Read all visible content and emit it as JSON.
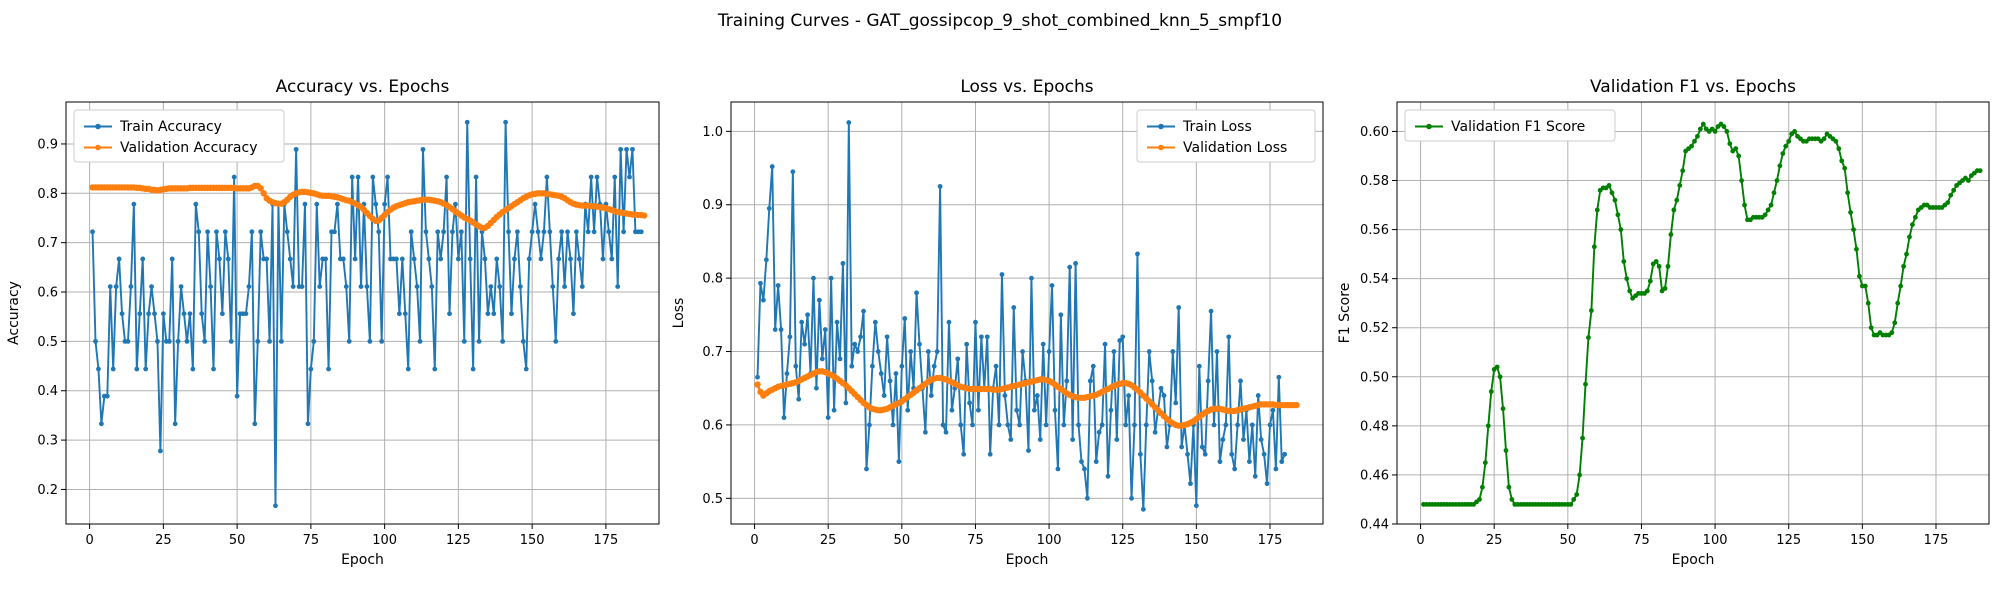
{
  "suptitle": "Training Curves - GAT_gossipcop_9_shot_combined_knn_5_smpf10",
  "colors": {
    "blue": "#1f77b4",
    "orange": "#ff7f0e",
    "green": "#008000"
  },
  "chart_data": [
    {
      "type": "line",
      "title": "Accuracy vs. Epochs",
      "xlabel": "Epoch",
      "ylabel": "Accuracy",
      "xlim": [
        -8,
        193
      ],
      "ylim": [
        0.13,
        0.985
      ],
      "xticks": [
        0,
        25,
        50,
        75,
        100,
        125,
        150,
        175
      ],
      "yticks": [
        0.2,
        0.3,
        0.4,
        0.5,
        0.6,
        0.7,
        0.8,
        0.9
      ],
      "grid": true,
      "legend": "upper-left",
      "series": [
        {
          "name": "Train Accuracy",
          "color": "#1f77b4",
          "x_start": 1,
          "values": [
            0.722,
            0.5,
            0.444,
            0.333,
            0.389,
            0.389,
            0.611,
            0.444,
            0.611,
            0.667,
            0.556,
            0.5,
            0.5,
            0.611,
            0.778,
            0.444,
            0.556,
            0.667,
            0.444,
            0.556,
            0.611,
            0.556,
            0.5,
            0.278,
            0.556,
            0.5,
            0.5,
            0.667,
            0.333,
            0.5,
            0.611,
            0.556,
            0.5,
            0.556,
            0.444,
            0.778,
            0.722,
            0.556,
            0.5,
            0.722,
            0.611,
            0.444,
            0.722,
            0.667,
            0.556,
            0.722,
            0.667,
            0.5,
            0.833,
            0.389,
            0.556,
            0.556,
            0.556,
            0.611,
            0.722,
            0.333,
            0.5,
            0.722,
            0.667,
            0.667,
            0.5,
            0.778,
            0.167,
            0.778,
            0.5,
            0.778,
            0.722,
            0.667,
            0.611,
            0.889,
            0.611,
            0.611,
            0.778,
            0.333,
            0.444,
            0.5,
            0.778,
            0.611,
            0.667,
            0.667,
            0.444,
            0.722,
            0.722,
            0.778,
            0.667,
            0.667,
            0.611,
            0.5,
            0.833,
            0.667,
            0.833,
            0.611,
            0.778,
            0.611,
            0.5,
            0.833,
            0.778,
            0.722,
            0.5,
            0.778,
            0.833,
            0.667,
            0.667,
            0.667,
            0.556,
            0.667,
            0.556,
            0.444,
            0.722,
            0.667,
            0.611,
            0.5,
            0.889,
            0.722,
            0.667,
            0.611,
            0.444,
            0.722,
            0.667,
            0.722,
            0.833,
            0.556,
            0.722,
            0.778,
            0.667,
            0.722,
            0.5,
            0.944,
            0.667,
            0.444,
            0.833,
            0.5,
            0.722,
            0.667,
            0.556,
            0.611,
            0.556,
            0.667,
            0.611,
            0.5,
            0.944,
            0.722,
            0.556,
            0.667,
            0.722,
            0.611,
            0.5,
            0.444,
            0.667,
            0.722,
            0.778,
            0.722,
            0.667,
            0.722,
            0.833,
            0.722,
            0.611,
            0.5,
            0.667,
            0.722,
            0.611,
            0.722,
            0.667,
            0.556,
            0.722,
            0.667,
            0.611,
            0.778,
            0.722,
            0.833,
            0.722,
            0.833,
            0.778,
            0.667,
            0.778,
            0.722,
            0.667,
            0.833,
            0.611,
            0.889,
            0.722,
            0.889,
            0.833,
            0.889,
            0.722,
            0.722,
            0.722
          ]
        },
        {
          "name": "Validation Accuracy",
          "color": "#ff7f0e",
          "x_start": 1,
          "values": [
            0.812,
            0.812,
            0.812,
            0.812,
            0.812,
            0.812,
            0.812,
            0.812,
            0.812,
            0.812,
            0.812,
            0.812,
            0.812,
            0.812,
            0.812,
            0.811,
            0.811,
            0.81,
            0.809,
            0.809,
            0.807,
            0.807,
            0.806,
            0.807,
            0.808,
            0.809,
            0.81,
            0.81,
            0.81,
            0.81,
            0.81,
            0.81,
            0.81,
            0.811,
            0.811,
            0.811,
            0.811,
            0.811,
            0.811,
            0.811,
            0.811,
            0.811,
            0.811,
            0.811,
            0.811,
            0.811,
            0.811,
            0.811,
            0.811,
            0.81,
            0.81,
            0.81,
            0.81,
            0.81,
            0.812,
            0.815,
            0.815,
            0.81,
            0.8,
            0.79,
            0.785,
            0.782,
            0.78,
            0.779,
            0.779,
            0.782,
            0.787,
            0.793,
            0.797,
            0.8,
            0.802,
            0.803,
            0.803,
            0.802,
            0.801,
            0.8,
            0.798,
            0.796,
            0.795,
            0.795,
            0.795,
            0.794,
            0.793,
            0.792,
            0.79,
            0.788,
            0.786,
            0.785,
            0.782,
            0.779,
            0.776,
            0.772,
            0.767,
            0.76,
            0.754,
            0.748,
            0.744,
            0.745,
            0.75,
            0.756,
            0.762,
            0.767,
            0.771,
            0.774,
            0.776,
            0.778,
            0.78,
            0.782,
            0.783,
            0.784,
            0.785,
            0.786,
            0.787,
            0.787,
            0.787,
            0.786,
            0.785,
            0.784,
            0.782,
            0.779,
            0.776,
            0.772,
            0.768,
            0.763,
            0.759,
            0.755,
            0.751,
            0.748,
            0.745,
            0.741,
            0.737,
            0.733,
            0.73,
            0.73,
            0.734,
            0.74,
            0.746,
            0.752,
            0.757,
            0.762,
            0.766,
            0.77,
            0.774,
            0.778,
            0.782,
            0.786,
            0.79,
            0.793,
            0.796,
            0.798,
            0.799,
            0.8,
            0.8,
            0.8,
            0.799,
            0.798,
            0.797,
            0.796,
            0.795,
            0.793,
            0.79,
            0.786,
            0.782,
            0.779,
            0.777,
            0.776,
            0.775,
            0.775,
            0.775,
            0.774,
            0.774,
            0.773,
            0.772,
            0.771,
            0.77,
            0.768,
            0.766,
            0.764,
            0.762,
            0.761,
            0.76,
            0.759,
            0.758,
            0.757,
            0.757,
            0.756,
            0.756,
            0.755
          ]
        }
      ]
    },
    {
      "type": "line",
      "title": "Loss vs. Epochs",
      "xlabel": "Epoch",
      "ylabel": "Loss",
      "xlim": [
        -8,
        193
      ],
      "ylim": [
        0.465,
        1.04
      ],
      "xticks": [
        0,
        25,
        50,
        75,
        100,
        125,
        150,
        175
      ],
      "yticks": [
        0.5,
        0.6,
        0.7,
        0.8,
        0.9,
        1.0
      ],
      "grid": true,
      "legend": "upper-right",
      "series": [
        {
          "name": "Train Loss",
          "color": "#1f77b4",
          "x_start": 1,
          "values": [
            0.665,
            0.793,
            0.77,
            0.825,
            0.895,
            0.952,
            0.73,
            0.79,
            0.73,
            0.61,
            0.67,
            0.72,
            0.945,
            0.68,
            0.635,
            0.74,
            0.71,
            0.75,
            0.67,
            0.8,
            0.65,
            0.77,
            0.69,
            0.73,
            0.61,
            0.8,
            0.62,
            0.74,
            0.69,
            0.82,
            0.63,
            1.012,
            0.68,
            0.71,
            0.7,
            0.72,
            0.755,
            0.54,
            0.6,
            0.68,
            0.74,
            0.7,
            0.67,
            0.64,
            0.72,
            0.66,
            0.6,
            0.67,
            0.55,
            0.68,
            0.745,
            0.62,
            0.7,
            0.65,
            0.78,
            0.71,
            0.65,
            0.59,
            0.7,
            0.64,
            0.68,
            0.7,
            0.925,
            0.6,
            0.59,
            0.74,
            0.62,
            0.65,
            0.69,
            0.6,
            0.56,
            0.71,
            0.63,
            0.6,
            0.74,
            0.62,
            0.72,
            0.65,
            0.72,
            0.56,
            0.65,
            0.68,
            0.6,
            0.805,
            0.64,
            0.6,
            0.58,
            0.76,
            0.62,
            0.6,
            0.7,
            0.66,
            0.565,
            0.8,
            0.62,
            0.64,
            0.58,
            0.71,
            0.6,
            0.7,
            0.79,
            0.62,
            0.54,
            0.75,
            0.6,
            0.66,
            0.815,
            0.58,
            0.82,
            0.6,
            0.55,
            0.54,
            0.5,
            0.66,
            0.68,
            0.55,
            0.59,
            0.6,
            0.71,
            0.53,
            0.62,
            0.7,
            0.58,
            0.715,
            0.72,
            0.6,
            0.64,
            0.5,
            0.6,
            0.833,
            0.56,
            0.485,
            0.6,
            0.7,
            0.66,
            0.59,
            0.62,
            0.65,
            0.64,
            0.57,
            0.6,
            0.7,
            0.63,
            0.76,
            0.57,
            0.6,
            0.56,
            0.52,
            0.6,
            0.49,
            0.68,
            0.57,
            0.56,
            0.66,
            0.755,
            0.6,
            0.7,
            0.55,
            0.58,
            0.6,
            0.72,
            0.56,
            0.54,
            0.6,
            0.66,
            0.58,
            0.62,
            0.55,
            0.6,
            0.53,
            0.64,
            0.58,
            0.56,
            0.52,
            0.6,
            0.62,
            0.54,
            0.665,
            0.55,
            0.56
          ]
        },
        {
          "name": "Validation Loss",
          "color": "#ff7f0e",
          "x_start": 1,
          "values": [
            0.655,
            0.645,
            0.64,
            0.643,
            0.646,
            0.648,
            0.65,
            0.652,
            0.653,
            0.654,
            0.655,
            0.656,
            0.657,
            0.658,
            0.66,
            0.662,
            0.664,
            0.666,
            0.668,
            0.67,
            0.672,
            0.673,
            0.673,
            0.672,
            0.67,
            0.668,
            0.666,
            0.663,
            0.66,
            0.657,
            0.654,
            0.65,
            0.646,
            0.642,
            0.638,
            0.634,
            0.63,
            0.627,
            0.624,
            0.622,
            0.621,
            0.62,
            0.62,
            0.621,
            0.622,
            0.624,
            0.626,
            0.628,
            0.63,
            0.632,
            0.635,
            0.638,
            0.641,
            0.644,
            0.647,
            0.65,
            0.653,
            0.656,
            0.659,
            0.662,
            0.663,
            0.664,
            0.664,
            0.663,
            0.662,
            0.66,
            0.658,
            0.656,
            0.654,
            0.652,
            0.651,
            0.65,
            0.649,
            0.649,
            0.649,
            0.649,
            0.649,
            0.649,
            0.649,
            0.649,
            0.648,
            0.648,
            0.648,
            0.649,
            0.65,
            0.651,
            0.652,
            0.653,
            0.654,
            0.655,
            0.656,
            0.657,
            0.658,
            0.659,
            0.66,
            0.661,
            0.662,
            0.662,
            0.661,
            0.66,
            0.658,
            0.655,
            0.652,
            0.649,
            0.646,
            0.643,
            0.641,
            0.639,
            0.638,
            0.637,
            0.637,
            0.637,
            0.638,
            0.639,
            0.64,
            0.641,
            0.643,
            0.645,
            0.647,
            0.649,
            0.651,
            0.653,
            0.655,
            0.656,
            0.657,
            0.657,
            0.656,
            0.654,
            0.651,
            0.648,
            0.644,
            0.64,
            0.636,
            0.632,
            0.628,
            0.624,
            0.62,
            0.616,
            0.612,
            0.608,
            0.605,
            0.602,
            0.6,
            0.599,
            0.599,
            0.6,
            0.601,
            0.603,
            0.605,
            0.608,
            0.611,
            0.614,
            0.617,
            0.619,
            0.621,
            0.622,
            0.622,
            0.622,
            0.621,
            0.62,
            0.619,
            0.619,
            0.619,
            0.62,
            0.621,
            0.622,
            0.623,
            0.624,
            0.625,
            0.626,
            0.627,
            0.628,
            0.628,
            0.628,
            0.628,
            0.628,
            0.627,
            0.627,
            0.627,
            0.627,
            0.627,
            0.627,
            0.627,
            0.627
          ]
        }
      ]
    },
    {
      "type": "line",
      "title": "Validation F1 vs. Epochs",
      "xlabel": "Epoch",
      "ylabel": "F1 Score",
      "xlim": [
        -8,
        193
      ],
      "ylim": [
        0.44,
        0.612
      ],
      "xticks": [
        0,
        25,
        50,
        75,
        100,
        125,
        150,
        175
      ],
      "yticks": [
        0.44,
        0.46,
        0.48,
        0.5,
        0.52,
        0.54,
        0.56,
        0.58,
        0.6
      ],
      "grid": true,
      "legend": "upper-left",
      "series": [
        {
          "name": "Validation F1 Score",
          "color": "#008000",
          "x_start": 1,
          "values": [
            0.448,
            0.448,
            0.448,
            0.448,
            0.448,
            0.448,
            0.448,
            0.448,
            0.448,
            0.448,
            0.448,
            0.448,
            0.448,
            0.448,
            0.448,
            0.448,
            0.448,
            0.448,
            0.449,
            0.45,
            0.455,
            0.465,
            0.48,
            0.494,
            0.503,
            0.504,
            0.5,
            0.487,
            0.47,
            0.455,
            0.45,
            0.448,
            0.448,
            0.448,
            0.448,
            0.448,
            0.448,
            0.448,
            0.448,
            0.448,
            0.448,
            0.448,
            0.448,
            0.448,
            0.448,
            0.448,
            0.448,
            0.448,
            0.448,
            0.448,
            0.448,
            0.45,
            0.452,
            0.46,
            0.475,
            0.497,
            0.516,
            0.527,
            0.553,
            0.568,
            0.576,
            0.577,
            0.577,
            0.578,
            0.575,
            0.572,
            0.566,
            0.56,
            0.547,
            0.54,
            0.535,
            0.532,
            0.533,
            0.534,
            0.534,
            0.534,
            0.535,
            0.539,
            0.546,
            0.547,
            0.545,
            0.535,
            0.536,
            0.545,
            0.558,
            0.568,
            0.572,
            0.578,
            0.584,
            0.592,
            0.593,
            0.594,
            0.596,
            0.598,
            0.601,
            0.603,
            0.601,
            0.6,
            0.601,
            0.6,
            0.602,
            0.603,
            0.602,
            0.6,
            0.595,
            0.592,
            0.593,
            0.59,
            0.58,
            0.57,
            0.564,
            0.564,
            0.565,
            0.565,
            0.565,
            0.565,
            0.566,
            0.568,
            0.57,
            0.575,
            0.58,
            0.586,
            0.591,
            0.594,
            0.596,
            0.599,
            0.6,
            0.598,
            0.597,
            0.596,
            0.596,
            0.597,
            0.597,
            0.597,
            0.597,
            0.596,
            0.597,
            0.599,
            0.598,
            0.597,
            0.596,
            0.593,
            0.588,
            0.585,
            0.575,
            0.567,
            0.56,
            0.552,
            0.541,
            0.537,
            0.537,
            0.53,
            0.52,
            0.517,
            0.517,
            0.518,
            0.517,
            0.517,
            0.517,
            0.518,
            0.522,
            0.53,
            0.537,
            0.545,
            0.55,
            0.557,
            0.562,
            0.565,
            0.568,
            0.569,
            0.57,
            0.57,
            0.569,
            0.569,
            0.569,
            0.569,
            0.569,
            0.57,
            0.571,
            0.574,
            0.576,
            0.578,
            0.579,
            0.58,
            0.581,
            0.58,
            0.582,
            0.583,
            0.584,
            0.584
          ]
        }
      ]
    }
  ]
}
